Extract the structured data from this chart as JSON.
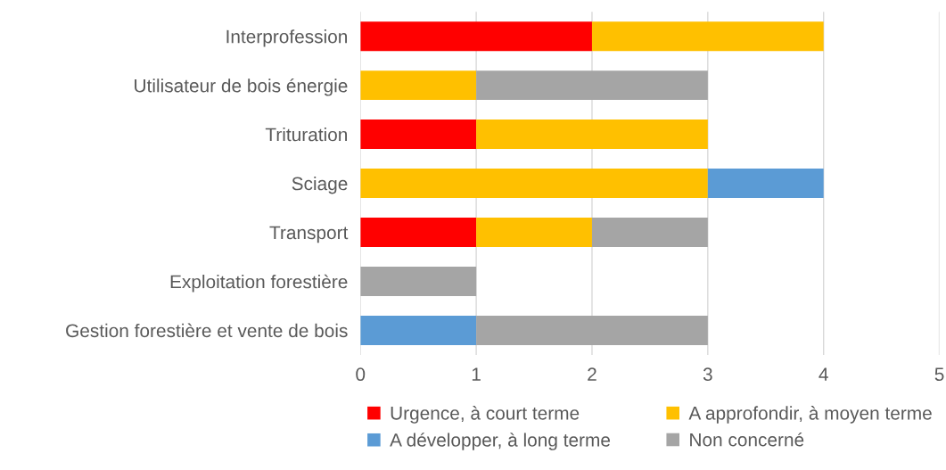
{
  "chart_data": {
    "type": "bar",
    "orientation": "horizontal",
    "stacked": true,
    "categories": [
      "Interprofession",
      "Utilisateur de bois énergie",
      "Trituration",
      "Sciage",
      "Transport",
      "Exploitation forestière",
      "Gestion forestière et vente de bois"
    ],
    "series": [
      {
        "name": "Urgence, à court terme",
        "color": "#ff0000",
        "values": [
          2,
          0,
          1,
          0,
          1,
          0,
          0
        ]
      },
      {
        "name": "A approfondir, à moyen terme",
        "color": "#ffc000",
        "values": [
          2,
          1,
          2,
          3,
          1,
          0,
          0
        ]
      },
      {
        "name": "A développer, à long terme",
        "color": "#5b9bd5",
        "values": [
          0,
          0,
          0,
          1,
          0,
          0,
          1
        ]
      },
      {
        "name": "Non concerné",
        "color": "#a5a5a5",
        "values": [
          0,
          2,
          0,
          0,
          1,
          1,
          2
        ]
      }
    ],
    "xlim": [
      0,
      5
    ],
    "xticks": [
      0,
      1,
      2,
      3,
      4,
      5
    ],
    "grid": "x",
    "legend": "bottom"
  }
}
